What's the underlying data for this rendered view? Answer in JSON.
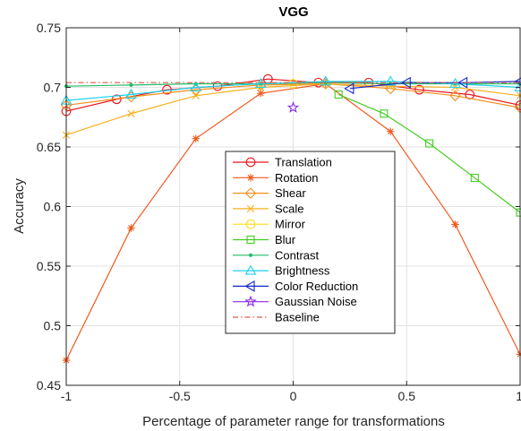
{
  "chart_data": {
    "type": "line",
    "title": "VGG",
    "xlabel": "Percentage of parameter range for transformations",
    "ylabel": "Accuracy",
    "xlim": [
      -1,
      1
    ],
    "ylim": [
      0.45,
      0.75
    ],
    "xticks": [
      -1,
      -0.5,
      0,
      0.5,
      1
    ],
    "xtick_labels": [
      "-1",
      "-0.5",
      "0",
      "0.5",
      "1"
    ],
    "yticks": [
      0.45,
      0.5,
      0.55,
      0.6,
      0.65,
      0.7,
      0.75
    ],
    "ytick_labels": [
      "0.45",
      "0.5",
      "0.55",
      "0.6",
      "0.65",
      "0.7",
      "0.75"
    ],
    "grid": true,
    "legend_position": "center",
    "series": [
      {
        "name": "Translation",
        "color": "#e8141c",
        "marker": "circle",
        "dash": "",
        "x": [
          -1,
          -0.778,
          -0.556,
          -0.333,
          -0.111,
          0.111,
          0.333,
          0.556,
          0.778,
          1
        ],
        "y": [
          0.68,
          0.69,
          0.698,
          0.701,
          0.707,
          0.704,
          0.704,
          0.698,
          0.694,
          0.685
        ]
      },
      {
        "name": "Rotation",
        "color": "#f05a1e",
        "marker": "star",
        "dash": "",
        "x": [
          -1,
          -0.714,
          -0.429,
          -0.143,
          0.143,
          0.429,
          0.714,
          1
        ],
        "y": [
          0.471,
          0.582,
          0.657,
          0.695,
          0.703,
          0.663,
          0.585,
          0.476
        ]
      },
      {
        "name": "Shear",
        "color": "#f39020",
        "marker": "diamond",
        "dash": "",
        "x": [
          -1,
          -0.714,
          -0.429,
          -0.143,
          0.143,
          0.429,
          0.714,
          1
        ],
        "y": [
          0.685,
          0.692,
          0.698,
          0.702,
          0.703,
          0.699,
          0.693,
          0.683
        ]
      },
      {
        "name": "Scale",
        "color": "#f7b020",
        "marker": "x",
        "dash": "",
        "x": [
          -1,
          -0.714,
          -0.429,
          -0.143,
          0.143,
          0.429,
          0.714,
          1
        ],
        "y": [
          0.66,
          0.678,
          0.693,
          0.7,
          0.703,
          0.701,
          0.7,
          0.693
        ]
      },
      {
        "name": "Mirror",
        "color": "#ffdc18",
        "marker": "circle",
        "dash": "",
        "x": [
          0
        ],
        "y": [
          0.703
        ]
      },
      {
        "name": "Blur",
        "color": "#44cc22",
        "marker": "square",
        "dash": "",
        "x": [
          0.2,
          0.4,
          0.6,
          0.8,
          1
        ],
        "y": [
          0.694,
          0.678,
          0.653,
          0.624,
          0.595
        ]
      },
      {
        "name": "Contrast",
        "color": "#22bb66",
        "marker": "dot",
        "dash": "",
        "x": [
          -1,
          -0.714,
          -0.429,
          -0.143,
          0.143,
          0.429,
          0.714,
          1
        ],
        "y": [
          0.701,
          0.702,
          0.703,
          0.703,
          0.704,
          0.703,
          0.703,
          0.703
        ]
      },
      {
        "name": "Brightness",
        "color": "#1ed2ee",
        "marker": "triangle",
        "dash": "",
        "x": [
          -1,
          -0.714,
          -0.429,
          -0.143,
          0.143,
          0.429,
          0.714,
          1
        ],
        "y": [
          0.689,
          0.694,
          0.7,
          0.703,
          0.705,
          0.705,
          0.703,
          0.7
        ]
      },
      {
        "name": "Color Reduction",
        "color": "#1428c8",
        "marker": "triangle-left",
        "dash": "",
        "x": [
          0.25,
          0.5,
          0.75,
          1
        ],
        "y": [
          0.699,
          0.704,
          0.704,
          0.705
        ]
      },
      {
        "name": "Gaussian Noise",
        "color": "#8c28e6",
        "marker": "pentagram",
        "dash": "",
        "x": [
          0
        ],
        "y": [
          0.683
        ]
      },
      {
        "name": "Baseline",
        "color": "#e05a4a",
        "marker": "none",
        "dash": "6,3,1.5,3",
        "x": [
          -1,
          1
        ],
        "y": [
          0.704,
          0.704
        ]
      }
    ]
  }
}
